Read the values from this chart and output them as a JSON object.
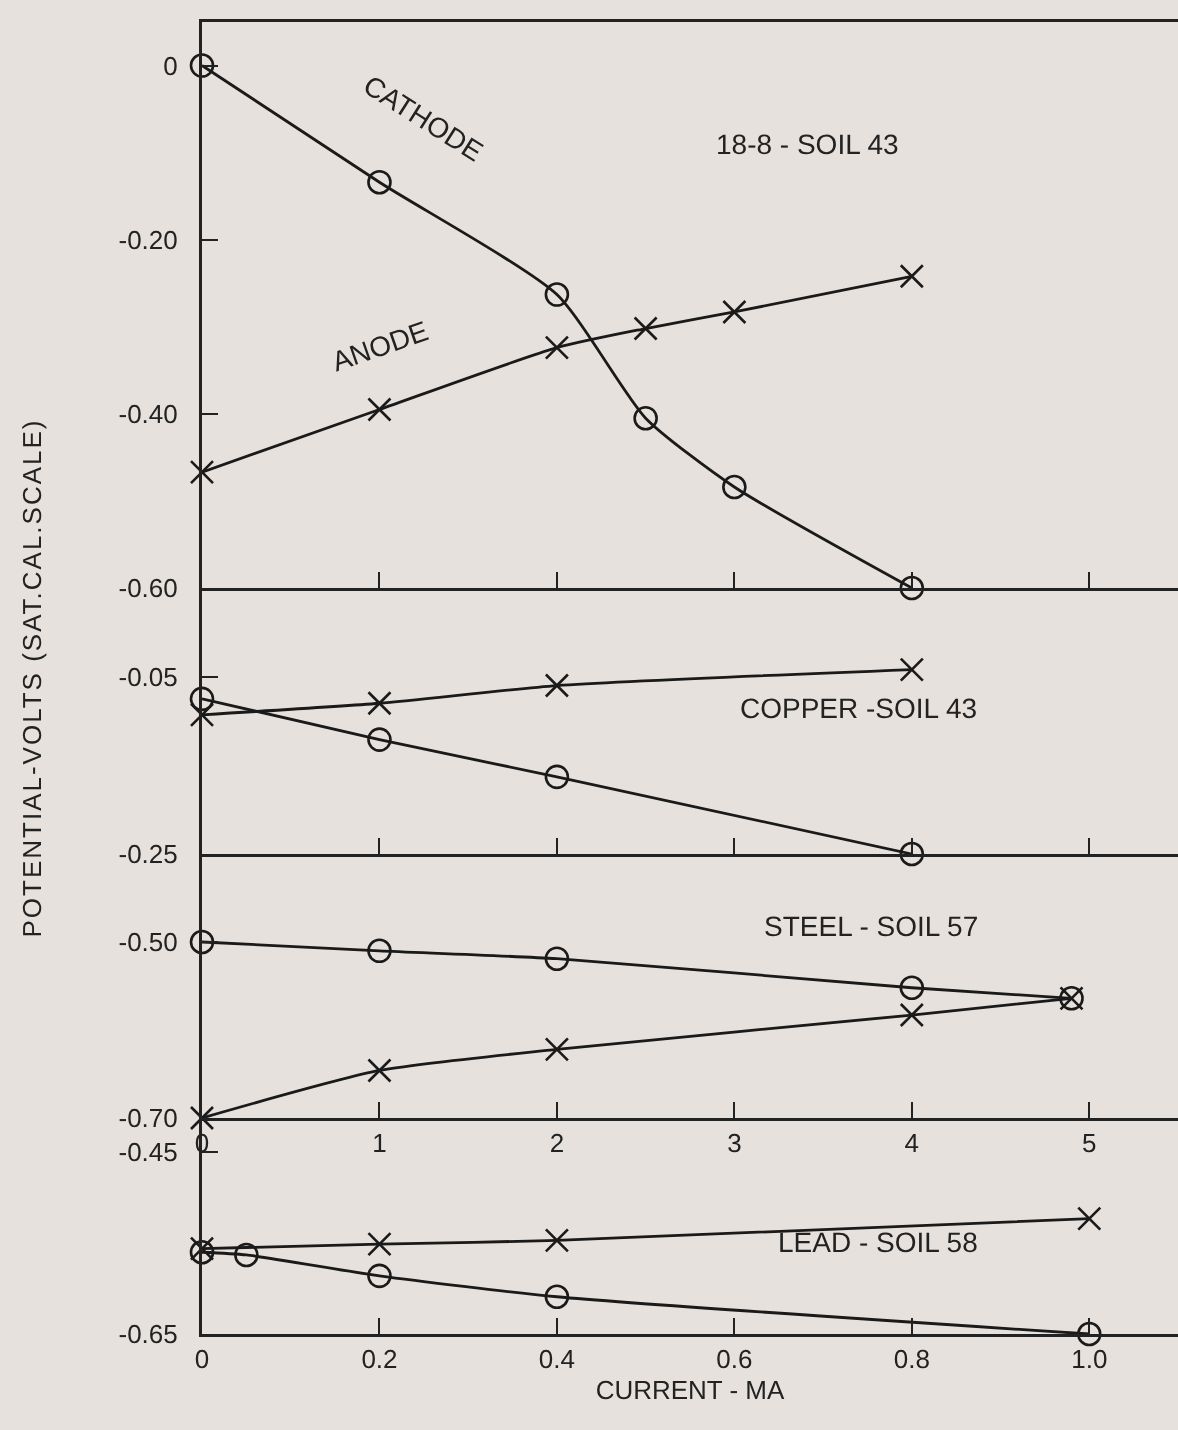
{
  "chart_data": [
    {
      "type": "line",
      "annotations": [
        "18-8 - SOIL 43"
      ],
      "xlim": [
        0,
        5.5
      ],
      "xticks": [
        0,
        1,
        2,
        3,
        4,
        5
      ],
      "ylim": [
        -0.6,
        0.05
      ],
      "yticks": [
        0,
        {
          "value": -0.2,
          "label": "-0.20"
        },
        {
          "value": -0.4,
          "label": "-0.40"
        },
        {
          "value": -0.6,
          "label": "-0.60"
        }
      ],
      "tick_labels": "y",
      "grid": false,
      "legend": false,
      "series": [
        {
          "name": "CATHODE",
          "color": "#1a1a1a",
          "marker": "circle",
          "x": [
            0,
            1,
            2,
            2.5,
            3,
            4
          ],
          "values": [
            0,
            -0.134,
            -0.263,
            -0.405,
            -0.484,
            -0.6
          ]
        },
        {
          "name": "ANODE",
          "color": "#1a1a1a",
          "marker": "cross",
          "x": [
            0,
            1,
            2,
            2.5,
            3,
            4
          ],
          "values": [
            -0.467,
            -0.395,
            -0.324,
            -0.302,
            -0.283,
            -0.242
          ]
        }
      ]
    },
    {
      "type": "line",
      "annotations": [
        "COPPER -SOIL 43"
      ],
      "ylabel": "POTENTIAL-VOLTS (SAT.CAL.SCALE)",
      "xlim": [
        0,
        5.5
      ],
      "xticks": [
        0,
        1,
        2,
        3,
        4,
        5
      ],
      "ylim": [
        -0.25,
        0.05
      ],
      "yticks": [
        -0.05,
        -0.25
      ],
      "tick_labels": "y",
      "grid": false,
      "legend": false,
      "series": [
        {
          "color": "#1a1a1a",
          "marker": "circle",
          "x": [
            0,
            1,
            2,
            4
          ],
          "values": [
            -0.075,
            -0.121,
            -0.163,
            -0.25
          ]
        },
        {
          "color": "#1a1a1a",
          "marker": "cross",
          "x": [
            0,
            1,
            2,
            4
          ],
          "values": [
            -0.093,
            -0.08,
            -0.06,
            -0.042
          ]
        }
      ]
    },
    {
      "type": "line",
      "annotations": [
        "STEEL - SOIL 57"
      ],
      "xlim": [
        0,
        5.5
      ],
      "xticks": [
        0,
        1,
        2,
        3,
        4,
        5
      ],
      "ylim": [
        -0.7,
        -0.4
      ],
      "yticks": [
        {
          "value": -0.5,
          "label": "-0.50"
        },
        {
          "value": -0.7,
          "label": "-0.70"
        }
      ],
      "grid": false,
      "legend": false,
      "series": [
        {
          "color": "#1a1a1a",
          "marker": "circle",
          "x": [
            0,
            1,
            2,
            4,
            4.9
          ],
          "values": [
            -0.5,
            -0.51,
            -0.519,
            -0.552,
            -0.564
          ]
        },
        {
          "color": "#1a1a1a",
          "marker": "cross",
          "x": [
            0,
            1,
            2,
            4,
            4.9
          ],
          "values": [
            -0.7,
            -0.646,
            -0.622,
            -0.583,
            -0.564
          ]
        }
      ]
    },
    {
      "type": "line",
      "annotations": [
        "LEAD - SOIL 58"
      ],
      "xlabel": "CURRENT - MA",
      "xlim": [
        0,
        1.1
      ],
      "xticks": [
        0,
        0.2,
        0.4,
        0.6,
        0.8,
        {
          "value": 1,
          "label": "1.0"
        }
      ],
      "ylim": [
        -0.65,
        -0.41
      ],
      "yticks": [
        -0.45,
        -0.65
      ],
      "grid": false,
      "legend": false,
      "series": [
        {
          "color": "#1a1a1a",
          "marker": "circle",
          "x": [
            0,
            0.05,
            0.2,
            0.4,
            1
          ],
          "values": [
            -0.56,
            -0.563,
            -0.586,
            -0.609,
            -0.65
          ]
        },
        {
          "color": "#1a1a1a",
          "marker": "cross",
          "x": [
            0,
            0.2,
            0.4,
            1
          ],
          "values": [
            -0.556,
            -0.551,
            -0.547,
            -0.523
          ]
        }
      ]
    }
  ]
}
